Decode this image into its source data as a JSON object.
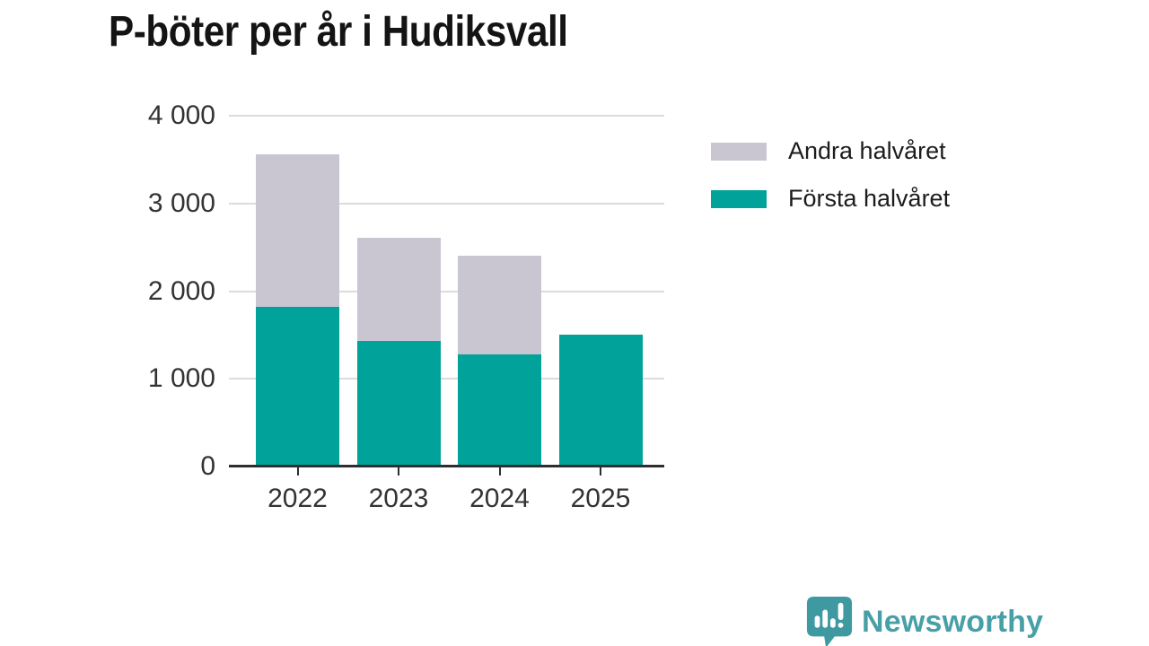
{
  "chart": {
    "title": "P-böter per år i Hudiksvall"
  },
  "chart_data": {
    "type": "bar",
    "stacked": true,
    "title": "P-böter per år i Hudiksvall",
    "categories": [
      "2022",
      "2023",
      "2024",
      "2025"
    ],
    "series": [
      {
        "name": "Första halvåret",
        "color": "#00a299",
        "values": [
          1820,
          1430,
          1280,
          1500
        ]
      },
      {
        "name": "Andra halvåret",
        "color": "#c9c6d2",
        "values": [
          1740,
          1180,
          1120,
          0
        ]
      }
    ],
    "totals": [
      3560,
      2610,
      2400,
      1500
    ],
    "xlabel": "",
    "ylabel": "",
    "ylim": [
      0,
      4000
    ],
    "yticks": [
      {
        "label": "4 000",
        "value": 4000
      },
      {
        "label": "3 000",
        "value": 3000
      },
      {
        "label": "2 000",
        "value": 2000
      },
      {
        "label": "1 000",
        "value": 1000
      },
      {
        "label": "0",
        "value": 0
      }
    ],
    "grid": true,
    "legend_position": "right-top",
    "legend_order": [
      "Andra halvåret",
      "Första halvåret"
    ]
  },
  "legend": {
    "items": [
      {
        "label": "Andra halvåret",
        "color": "#c9c6d2"
      },
      {
        "label": "Första halvåret",
        "color": "#00a299"
      }
    ]
  },
  "colors": {
    "first_half": "#00a299",
    "second_half": "#c9c6d2",
    "gridline": "#dcdcdc",
    "axis": "#2e2e2e",
    "tick_text": "#333333",
    "title_text": "#141414",
    "logo": "#47a0a7",
    "logo_icon": "#3e99a0"
  },
  "branding": {
    "logo_text": "Newsworthy"
  }
}
